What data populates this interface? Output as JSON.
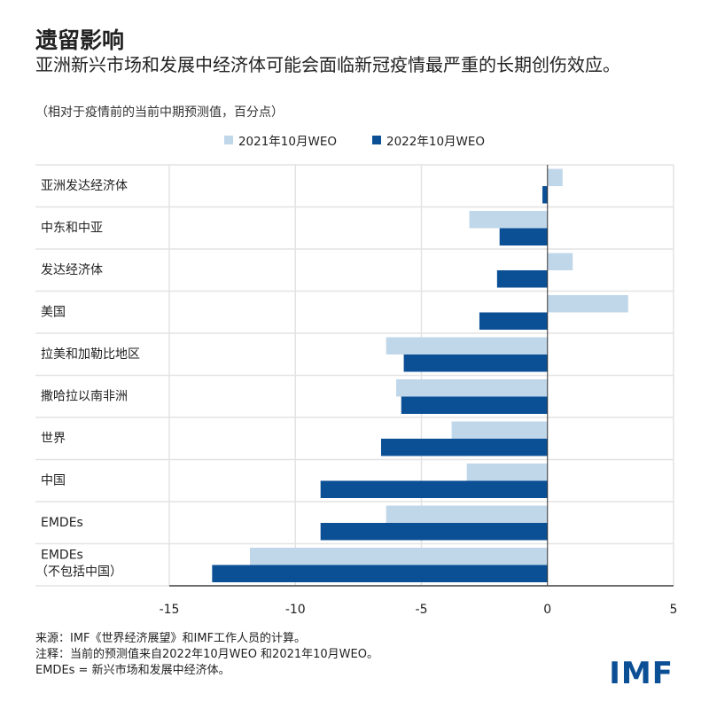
{
  "header": {
    "title": "遗留影响",
    "subtitle": "亚洲新兴市场和发展中经济体可能会面临新冠疫情最严重的长期创伤效应。",
    "units": "（相对于疫情前的当前中期预测值，百分点）"
  },
  "colors": {
    "series_2021": "#c0d7ea",
    "series_2022": "#0b4f95"
  },
  "chart_data": {
    "type": "bar",
    "orientation": "horizontal",
    "categories": [
      "亚洲发达经济体",
      "中东和中亚",
      "发达经济体",
      "美国",
      "拉美和加勒比地区",
      "撒哈拉以南非洲",
      "世界",
      "中国",
      "EMDEs",
      "EMDEs\n（不包括中国）"
    ],
    "series": [
      {
        "name": "2021年10月WEO",
        "values": [
          0.6,
          -3.1,
          1.0,
          3.2,
          -6.4,
          -6.0,
          -3.8,
          -3.2,
          -6.4,
          -11.8
        ]
      },
      {
        "name": "2022年10月WEO",
        "values": [
          -0.2,
          -1.9,
          -2.0,
          -2.7,
          -5.7,
          -5.8,
          -6.6,
          -9.0,
          -9.0,
          -13.3
        ]
      }
    ],
    "xlim": [
      -15,
      5
    ],
    "xticks": [
      "-15",
      "-10",
      "-5",
      "0",
      "5"
    ],
    "grid": true,
    "legend": "top"
  },
  "footer": {
    "source": "来源：IMF《世界经济展望》和IMF工作人员的计算。",
    "note": "注释：当前的预测值来自2022年10月WEO 和2021年10月WEO。",
    "abbr": "EMDEs = 新兴市场和发展中经济体。",
    "logo": "IMF"
  }
}
